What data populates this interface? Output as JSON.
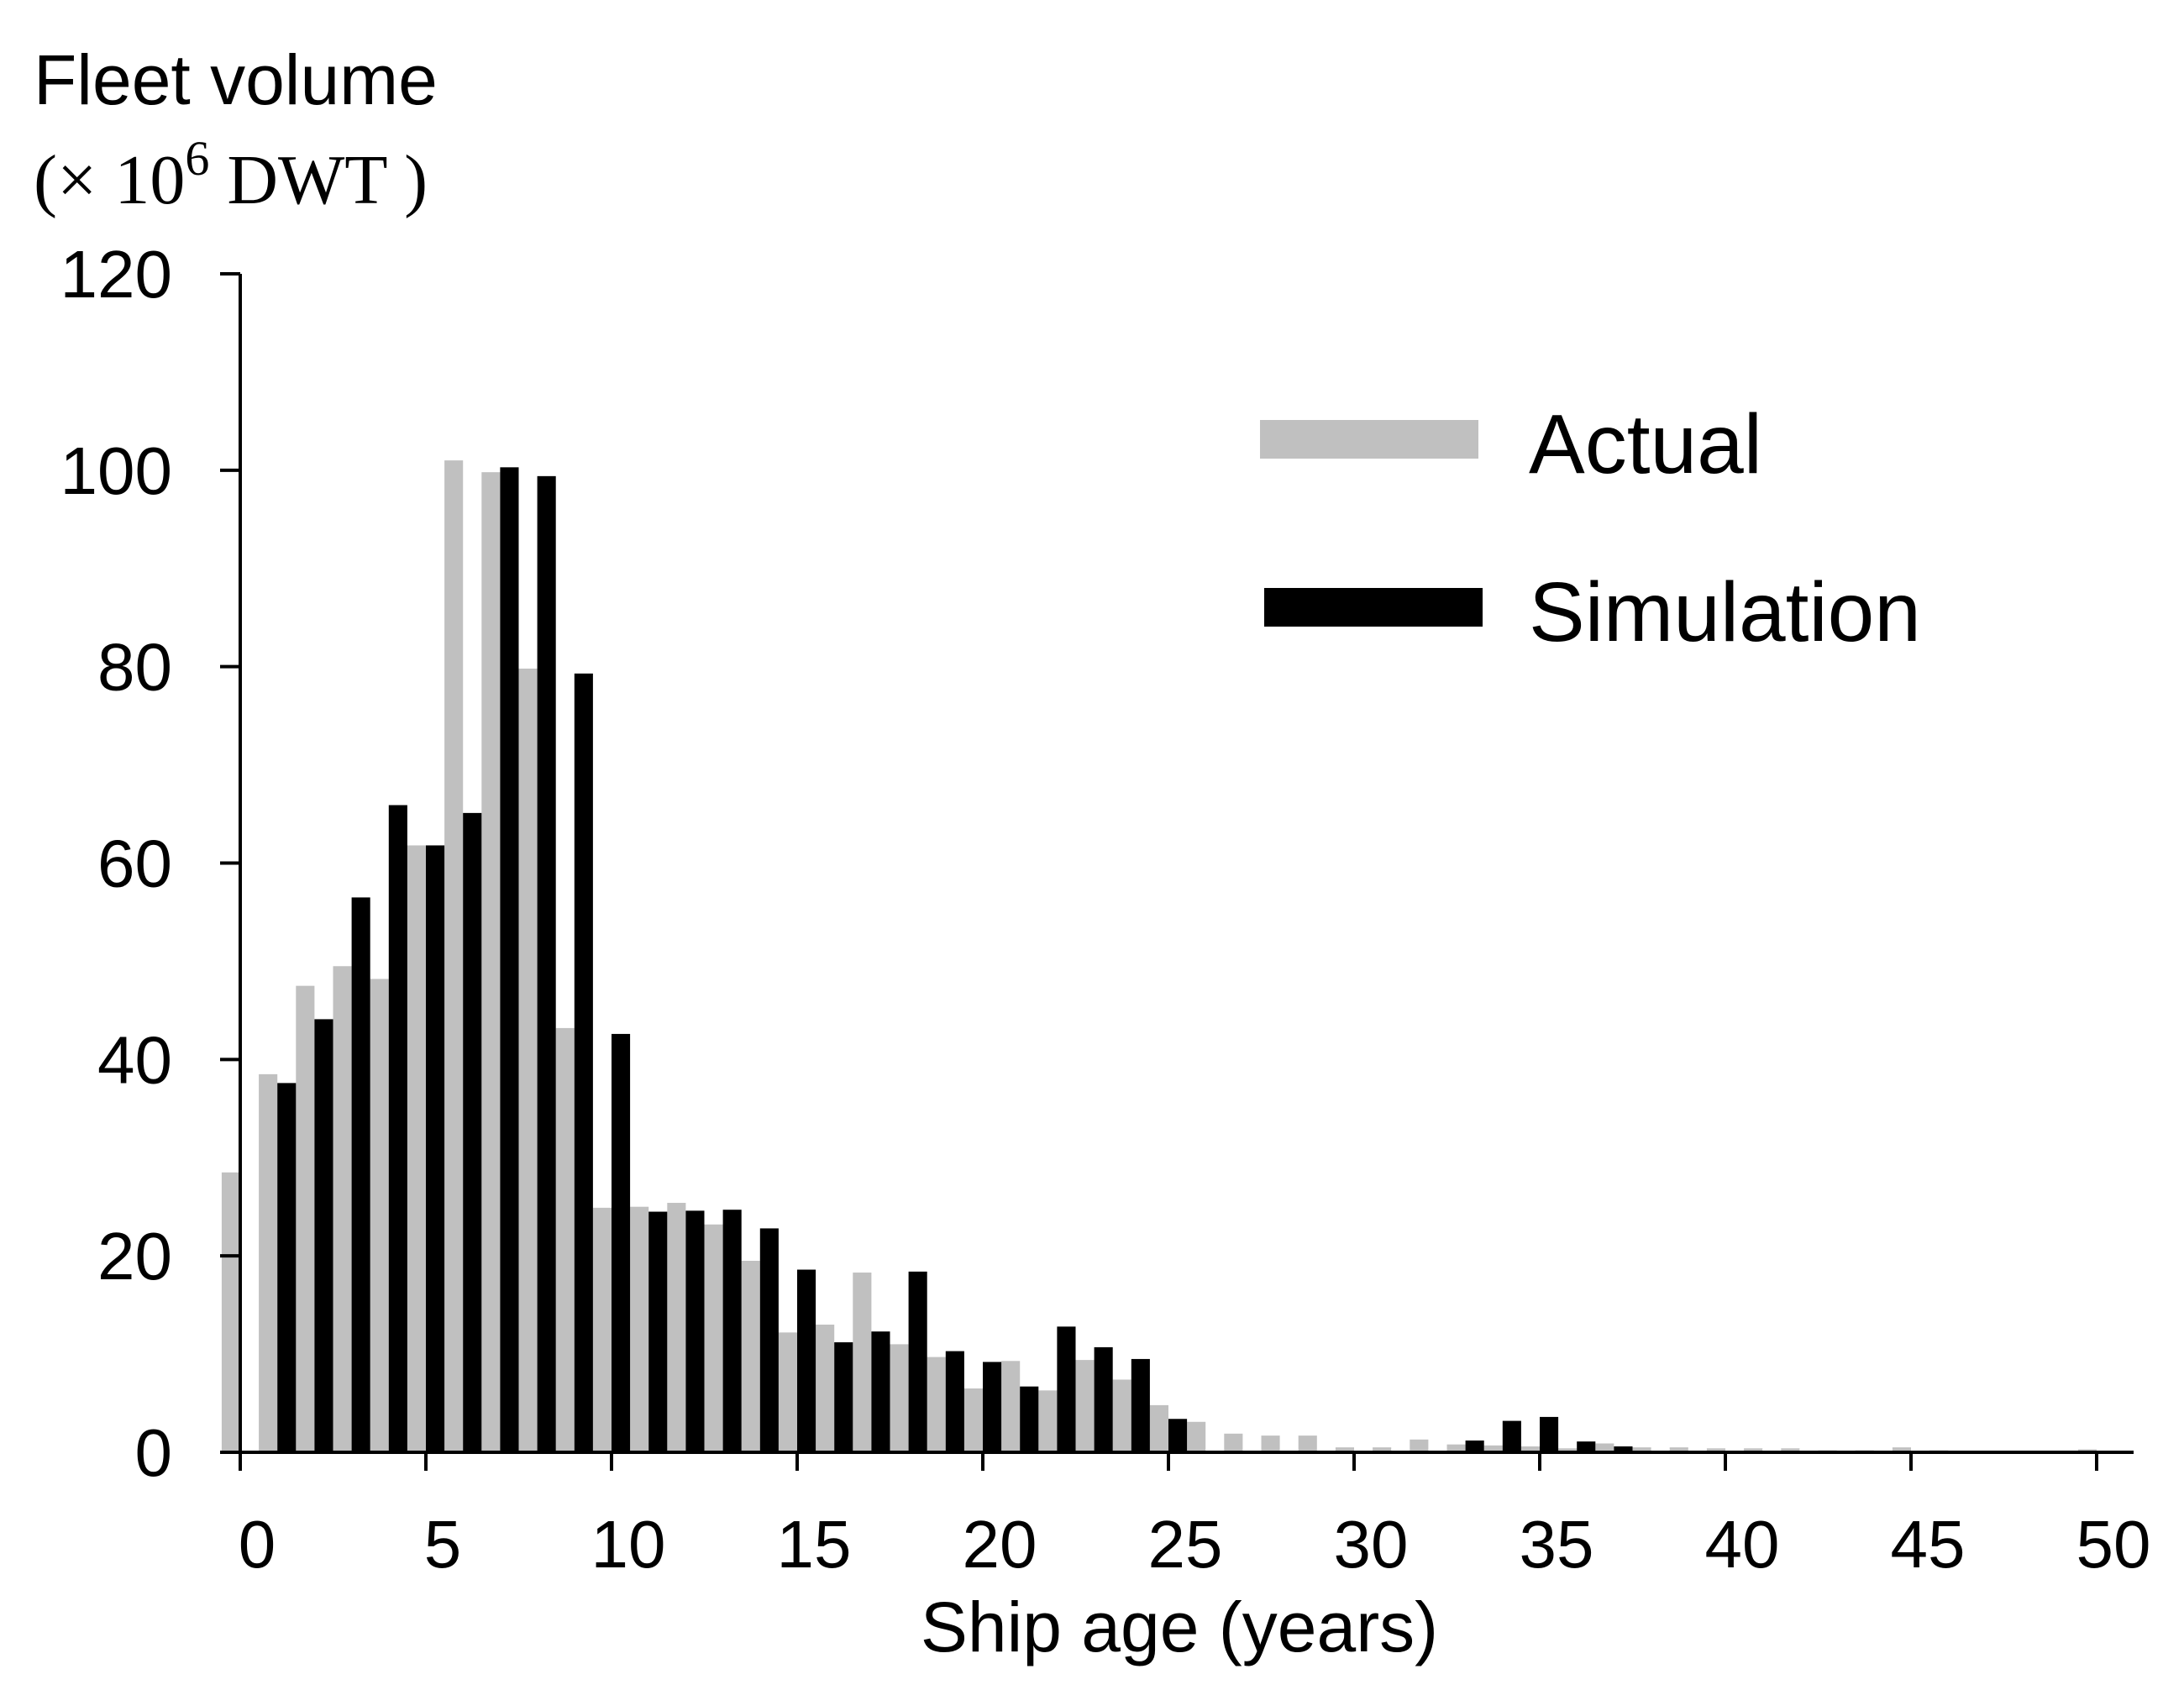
{
  "chart_data": {
    "type": "bar",
    "title": "",
    "ylabel_line1": "Fleet volume",
    "ylabel_line2_prefix": "(× 10",
    "ylabel_line2_exp": "6",
    "ylabel_line2_suffix": " DWT )",
    "xlabel": "Ship age (years)",
    "xlim": [
      0,
      50
    ],
    "ylim": [
      0,
      120
    ],
    "xticks": [
      "0",
      "5",
      "10",
      "15",
      "20",
      "25",
      "30",
      "35",
      "40",
      "45",
      "50"
    ],
    "yticks": [
      "0",
      "20",
      "40",
      "60",
      "80",
      "100",
      "120"
    ],
    "legend_position": "top-right",
    "colors": {
      "Actual": "#c0c0c0",
      "Simulation": "#000000"
    },
    "x": [
      0,
      1,
      2,
      3,
      4,
      5,
      6,
      7,
      8,
      9,
      10,
      11,
      12,
      13,
      14,
      15,
      16,
      17,
      18,
      19,
      20,
      21,
      22,
      23,
      24,
      25,
      26,
      27,
      28,
      29,
      30,
      31,
      32,
      33,
      34,
      35,
      36,
      37,
      38,
      39,
      40,
      41,
      42,
      43,
      44,
      45,
      46,
      47,
      48,
      49,
      50
    ],
    "series": [
      {
        "name": "Actual",
        "values": [
          28.5,
          38.5,
          47.5,
          49.5,
          48.2,
          61.8,
          101,
          99.8,
          79.8,
          43.2,
          24.9,
          25,
          25.4,
          23.2,
          19.5,
          12.2,
          13,
          18.3,
          11,
          9.7,
          6.5,
          9.3,
          6.3,
          9.4,
          7.4,
          4.8,
          3.1,
          1.9,
          1.7,
          1.7,
          0.5,
          0.5,
          1.3,
          0.8,
          0.7,
          0.6,
          0.4,
          0.9,
          0.5,
          0.5,
          0.4,
          0.4,
          0.4,
          0.2,
          0.2,
          0.5,
          0.2,
          0.1,
          0.1,
          0.1,
          0.3
        ]
      },
      {
        "name": "Simulation",
        "values": [
          null,
          37.6,
          44.1,
          56.5,
          65.9,
          61.8,
          65.1,
          100.3,
          99.4,
          79.3,
          42.6,
          24.5,
          24.6,
          24.7,
          22.8,
          18.6,
          11.2,
          12.3,
          18.4,
          10.3,
          9.2,
          6.7,
          12.8,
          10.7,
          9.5,
          3.4,
          0,
          0,
          0,
          0,
          0,
          0,
          0,
          1.2,
          3.2,
          3.6,
          1.1,
          0.6,
          0,
          0,
          0,
          0,
          0,
          0,
          0,
          0,
          0,
          0,
          0,
          0,
          0
        ]
      }
    ]
  }
}
